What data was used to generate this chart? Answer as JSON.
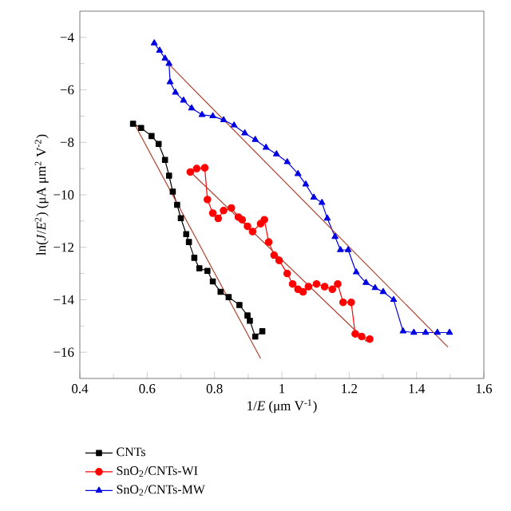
{
  "chart_data": {
    "type": "line",
    "xlabel": "1/*E* (μm V$^{-1}$)",
    "ylabel": "ln(*J*/*E*$^{2}$) (μA μm$^{2}$ V$^{-2}$)",
    "xlim": [
      0.4,
      1.6
    ],
    "ylim": [
      -17,
      -3
    ],
    "xticks": [
      0.4,
      0.6,
      0.8,
      1,
      1.2,
      1.4,
      1.6
    ],
    "yticks": [
      {
        "value": -4,
        "label": "−4"
      },
      {
        "value": -6,
        "label": "−6"
      },
      {
        "value": -8,
        "label": "−8"
      },
      {
        "value": -10,
        "label": "−10"
      },
      {
        "value": -12,
        "label": "−12"
      },
      {
        "value": -14,
        "label": "−14"
      },
      {
        "value": -16,
        "label": "−16"
      }
    ],
    "legend": "bottom left",
    "series": [
      {
        "name": "CNTs",
        "color": "#000000",
        "marker": "square",
        "line_style": "solid",
        "x": [
          0.558,
          0.582,
          0.613,
          0.634,
          0.653,
          0.665,
          0.676,
          0.689,
          0.7,
          0.716,
          0.724,
          0.74,
          0.755,
          0.779,
          0.795,
          0.818,
          0.842,
          0.874,
          0.898,
          0.905,
          0.921,
          0.942
        ],
        "values": [
          -7.29,
          -7.45,
          -7.76,
          -8.06,
          -8.67,
          -9.27,
          -9.88,
          -10.38,
          -10.89,
          -11.5,
          -11.8,
          -12.4,
          -12.8,
          -12.9,
          -13.3,
          -13.7,
          -13.9,
          -14.2,
          -14.6,
          -14.8,
          -15.4,
          -15.2
        ]
      },
      {
        "name": "SnO$_{2}$/CNTs-WI",
        "color": "#ff0000",
        "marker": "circle",
        "line_style": "solid",
        "x": [
          0.728,
          0.747,
          0.771,
          0.779,
          0.795,
          0.811,
          0.827,
          0.85,
          0.871,
          0.882,
          0.898,
          0.913,
          0.937,
          0.948,
          0.961,
          0.977,
          0.992,
          1.016,
          1.032,
          1.048,
          1.063,
          1.079,
          1.103,
          1.127,
          1.15,
          1.166,
          1.182,
          1.206,
          1.218,
          1.237,
          1.261
        ],
        "values": [
          -9.13,
          -9.0,
          -8.97,
          -10.18,
          -10.7,
          -10.9,
          -10.6,
          -10.5,
          -10.85,
          -10.95,
          -11.2,
          -11.4,
          -11.1,
          -10.95,
          -11.8,
          -12.3,
          -12.5,
          -13.0,
          -13.4,
          -13.6,
          -13.7,
          -13.5,
          -13.4,
          -13.5,
          -13.6,
          -13.4,
          -14.1,
          -14.1,
          -15.3,
          -15.4,
          -15.5
        ]
      },
      {
        "name": "SnO$_{2}$/CNTs-MW",
        "color": "#0000e0",
        "marker": "triangle",
        "line_style": "solid",
        "x": [
          0.621,
          0.637,
          0.653,
          0.665,
          0.668,
          0.684,
          0.708,
          0.732,
          0.763,
          0.795,
          0.827,
          0.858,
          0.89,
          0.921,
          0.953,
          0.984,
          1.016,
          1.048,
          1.071,
          1.095,
          1.119,
          1.135,
          1.158,
          1.174,
          1.197,
          1.221,
          1.25,
          1.277,
          1.301,
          1.332,
          1.36,
          1.392,
          1.427,
          1.462,
          1.498
        ],
        "values": [
          -4.22,
          -4.5,
          -4.8,
          -5.0,
          -5.7,
          -6.1,
          -6.4,
          -6.7,
          -6.95,
          -7.0,
          -7.15,
          -7.35,
          -7.65,
          -7.9,
          -8.2,
          -8.45,
          -8.75,
          -9.2,
          -9.6,
          -10.1,
          -10.3,
          -10.9,
          -11.6,
          -12.1,
          -12.1,
          -12.95,
          -13.35,
          -13.55,
          -13.7,
          -14.0,
          -15.2,
          -15.25,
          -15.25,
          -15.25,
          -15.25
        ]
      },
      {
        "color": "#b04030",
        "marker": "none",
        "line_style": "solid",
        "x": [
          0.558,
          0.937
        ],
        "values": [
          -7.2,
          -16.24
        ]
      },
      {
        "color": "#b04030",
        "marker": "none",
        "line_style": "solid",
        "x": [
          0.732,
          1.253
        ],
        "values": [
          -9.17,
          -15.6
        ]
      },
      {
        "color": "#b04030",
        "marker": "none",
        "line_style": "solid",
        "x": [
          0.665,
          1.493
        ],
        "values": [
          -5.03,
          -15.8
        ]
      }
    ]
  }
}
